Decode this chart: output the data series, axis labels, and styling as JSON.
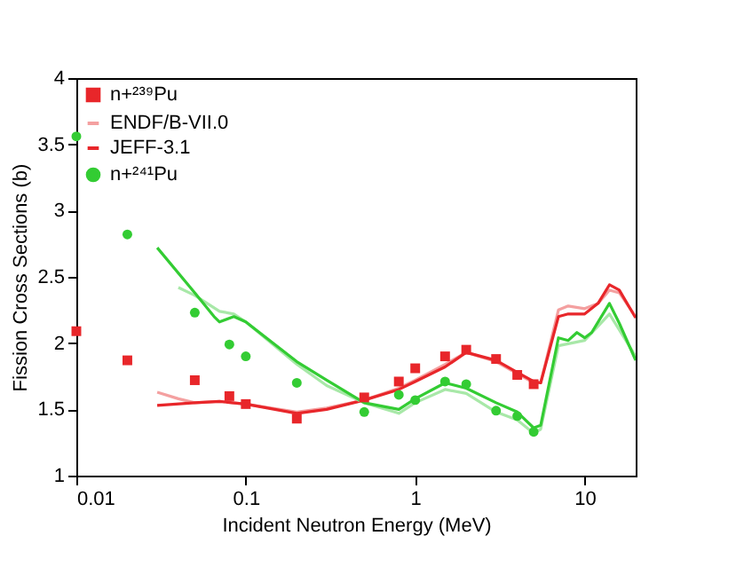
{
  "chart_data": {
    "type": "line",
    "xlabel": "Incident Neutron Energy (MeV)",
    "ylabel": "Fission Cross Sections (b)",
    "log": "x",
    "xlim": [
      0.01,
      20
    ],
    "ylim": [
      1,
      4
    ],
    "xticks": [
      0.01,
      0.1,
      1,
      10
    ],
    "yticks": [
      1,
      1.5,
      2,
      2.5,
      3,
      3.5,
      4
    ],
    "grid": false,
    "legend": "top left",
    "series": [
      {
        "name": "n+²³⁹Pu",
        "type": "scatter",
        "marker": "square",
        "color": "#e8262a",
        "x": [
          0.01,
          0.02,
          0.05,
          0.08,
          0.1,
          0.2,
          0.5,
          0.8,
          1,
          1.5,
          2,
          3,
          4,
          5
        ],
        "values": [
          2.09,
          1.87,
          1.72,
          1.6,
          1.54,
          1.43,
          1.59,
          1.71,
          1.81,
          1.9,
          1.95,
          1.88,
          1.76,
          1.69
        ]
      },
      {
        "name": "ENDF/B-VII.0",
        "type": "line",
        "color": "#f4a0a0",
        "x": [
          0.03,
          0.04,
          0.05,
          0.07,
          0.1,
          0.2,
          0.3,
          0.5,
          0.8,
          1,
          1.5,
          2,
          3,
          4,
          5,
          5.5,
          7,
          8,
          10,
          12,
          14,
          16,
          20
        ],
        "values": [
          1.63,
          1.58,
          1.55,
          1.56,
          1.54,
          1.48,
          1.51,
          1.57,
          1.66,
          1.72,
          1.84,
          1.93,
          1.86,
          1.77,
          1.7,
          1.7,
          2.25,
          2.28,
          2.26,
          2.3,
          2.4,
          2.38,
          2.2
        ]
      },
      {
        "name": "JEFF-3.1",
        "type": "line",
        "color": "#e8262a",
        "x": [
          0.03,
          0.05,
          0.07,
          0.1,
          0.2,
          0.3,
          0.5,
          0.8,
          1,
          1.5,
          2,
          3,
          4,
          5,
          5.5,
          7,
          8,
          10,
          12,
          14,
          16,
          20
        ],
        "values": [
          1.53,
          1.55,
          1.56,
          1.54,
          1.47,
          1.5,
          1.57,
          1.65,
          1.71,
          1.82,
          1.93,
          1.87,
          1.78,
          1.71,
          1.7,
          2.2,
          2.22,
          2.22,
          2.3,
          2.44,
          2.4,
          2.19
        ]
      },
      {
        "name": "n+²⁴¹Pu",
        "type": "scatter",
        "marker": "circle",
        "color": "#33cc33",
        "x": [
          0.01,
          0.02,
          0.05,
          0.08,
          0.1,
          0.2,
          0.5,
          0.8,
          1,
          1.5,
          2,
          3,
          4,
          5
        ],
        "values": [
          3.56,
          2.82,
          2.23,
          1.99,
          1.9,
          1.7,
          1.48,
          1.61,
          1.57,
          1.71,
          1.69,
          1.49,
          1.45,
          1.33
        ]
      },
      {
        "type": "line",
        "color": "#a8e8a8",
        "x": [
          0.04,
          0.05,
          0.07,
          0.085,
          0.1,
          0.2,
          0.3,
          0.5,
          0.8,
          1,
          1.5,
          2,
          3,
          4,
          5,
          5.5,
          7,
          10,
          14,
          16,
          20
        ],
        "values": [
          2.42,
          2.36,
          2.24,
          2.22,
          2.16,
          1.84,
          1.68,
          1.55,
          1.47,
          1.55,
          1.65,
          1.62,
          1.48,
          1.42,
          1.32,
          1.35,
          1.98,
          2.02,
          2.22,
          2.1,
          1.9
        ]
      },
      {
        "type": "line",
        "color": "#33cc33",
        "x": [
          0.03,
          0.05,
          0.065,
          0.07,
          0.085,
          0.1,
          0.2,
          0.3,
          0.5,
          0.8,
          1,
          1.5,
          2,
          3,
          4,
          5,
          5.5,
          7,
          8,
          9,
          10,
          11,
          14,
          16,
          20
        ],
        "values": [
          2.72,
          2.38,
          2.2,
          2.16,
          2.2,
          2.16,
          1.86,
          1.72,
          1.55,
          1.5,
          1.58,
          1.7,
          1.66,
          1.55,
          1.48,
          1.36,
          1.38,
          2.04,
          2.02,
          2.08,
          2.04,
          2.08,
          2.3,
          2.15,
          1.87
        ]
      }
    ]
  }
}
